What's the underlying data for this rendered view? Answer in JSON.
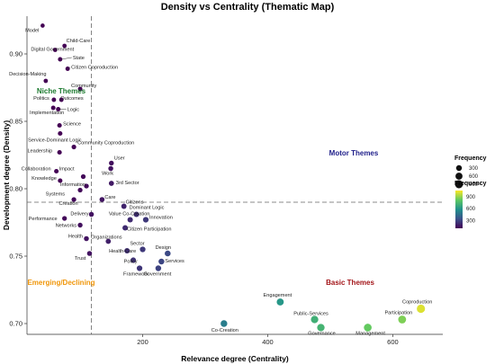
{
  "chart_data": {
    "type": "scatter",
    "title": "Density vs Centrality (Thematic Map)",
    "xlabel": "Relevance degree (Centrality)",
    "ylabel": "Development degree (Density)",
    "x_ticks": [
      200,
      400,
      600
    ],
    "y_ticks": [
      0.7,
      0.75,
      0.8,
      0.85,
      0.9
    ],
    "xlim": [
      15,
      680
    ],
    "ylim": [
      0.692,
      0.928
    ],
    "ref_x": 118,
    "ref_y": 0.79,
    "grid": false,
    "quadrant_labels": [
      {
        "text": "Niche Themes",
        "color": "#1b7a2e"
      },
      {
        "text": "Motor Themes",
        "color": "#1f1f8a"
      },
      {
        "text": "Emerging/Declining",
        "color": "#f0960a"
      },
      {
        "text": "Basic Themes",
        "color": "#a3161a"
      }
    ],
    "legend_frequency": {
      "title": "Frequency",
      "values": [
        300,
        600,
        900
      ]
    },
    "legend_color": {
      "title": "Frequency",
      "ticks": [
        300,
        600,
        900
      ],
      "min": 100,
      "max": 1050
    },
    "points": [
      {
        "label": "Model",
        "x": 40,
        "y": 0.921,
        "freq": 60
      },
      {
        "label": "Child-Care",
        "x": 75,
        "y": 0.906,
        "freq": 70
      },
      {
        "label": "Digital Government",
        "x": 60,
        "y": 0.903,
        "freq": 70
      },
      {
        "label": "State",
        "x": 68,
        "y": 0.896,
        "freq": 80
      },
      {
        "label": "Citizen Coproduction",
        "x": 80,
        "y": 0.889,
        "freq": 80
      },
      {
        "label": "Decision-Making",
        "x": 45,
        "y": 0.88,
        "freq": 70
      },
      {
        "label": "Community",
        "x": 100,
        "y": 0.874,
        "freq": 90
      },
      {
        "label": "Politics",
        "x": 58,
        "y": 0.866,
        "freq": 80
      },
      {
        "label": "Outcomes",
        "x": 70,
        "y": 0.866,
        "freq": 80
      },
      {
        "label": "Implementation",
        "x": 57,
        "y": 0.86,
        "freq": 90
      },
      {
        "label": "Logic",
        "x": 65,
        "y": 0.859,
        "freq": 90
      },
      {
        "label": "Science",
        "x": 67,
        "y": 0.847,
        "freq": 100
      },
      {
        "label": "Service-Dominant Logic",
        "x": 68,
        "y": 0.841,
        "freq": 100
      },
      {
        "label": "Community Coproduction",
        "x": 90,
        "y": 0.831,
        "freq": 110
      },
      {
        "label": "Leadership",
        "x": 67,
        "y": 0.827,
        "freq": 100
      },
      {
        "label": "User",
        "x": 150,
        "y": 0.819,
        "freq": 140
      },
      {
        "label": "Collaboration",
        "x": 62,
        "y": 0.813,
        "freq": 100
      },
      {
        "label": "Impact",
        "x": 105,
        "y": 0.809,
        "freq": 120
      },
      {
        "label": "Work",
        "x": 149,
        "y": 0.815,
        "freq": 150
      },
      {
        "label": "Knowledge",
        "x": 68,
        "y": 0.806,
        "freq": 100
      },
      {
        "label": "3rd Sector",
        "x": 150,
        "y": 0.804,
        "freq": 170
      },
      {
        "label": "Information",
        "x": 110,
        "y": 0.802,
        "freq": 130
      },
      {
        "label": "Systems",
        "x": 100,
        "y": 0.799,
        "freq": 120
      },
      {
        "label": "Care",
        "x": 135,
        "y": 0.792,
        "freq": 160
      },
      {
        "label": "Creation",
        "x": 90,
        "y": 0.792,
        "freq": 120
      },
      {
        "label": "Citizens",
        "x": 170,
        "y": 0.787,
        "freq": 200
      },
      {
        "label": "Dominant Logic",
        "x": 190,
        "y": 0.781,
        "freq": 230
      },
      {
        "label": "Delivery",
        "x": 118,
        "y": 0.781,
        "freq": 150
      },
      {
        "label": "Value Co-Creation",
        "x": 180,
        "y": 0.777,
        "freq": 220
      },
      {
        "label": "Innovation",
        "x": 205,
        "y": 0.777,
        "freq": 260
      },
      {
        "label": "Performance",
        "x": 75,
        "y": 0.778,
        "freq": 120
      },
      {
        "label": "Citizen Participation",
        "x": 172,
        "y": 0.771,
        "freq": 220
      },
      {
        "label": "Networks",
        "x": 100,
        "y": 0.773,
        "freq": 140
      },
      {
        "label": "Health",
        "x": 110,
        "y": 0.763,
        "freq": 150
      },
      {
        "label": "Organizations",
        "x": 145,
        "y": 0.761,
        "freq": 190
      },
      {
        "label": "Sector",
        "x": 200,
        "y": 0.755,
        "freq": 260
      },
      {
        "label": "Health-Care",
        "x": 175,
        "y": 0.754,
        "freq": 230
      },
      {
        "label": "Design",
        "x": 240,
        "y": 0.752,
        "freq": 310
      },
      {
        "label": "Trust",
        "x": 115,
        "y": 0.752,
        "freq": 150
      },
      {
        "label": "Policy",
        "x": 185,
        "y": 0.747,
        "freq": 240
      },
      {
        "label": "Services",
        "x": 230,
        "y": 0.746,
        "freq": 300
      },
      {
        "label": "Framework",
        "x": 195,
        "y": 0.741,
        "freq": 250
      },
      {
        "label": "Government",
        "x": 225,
        "y": 0.741,
        "freq": 290
      },
      {
        "label": "Engagement",
        "x": 420,
        "y": 0.716,
        "freq": 600
      },
      {
        "label": "Coproduction",
        "x": 645,
        "y": 0.711,
        "freq": 1000
      },
      {
        "label": "Public-Services",
        "x": 475,
        "y": 0.703,
        "freq": 700
      },
      {
        "label": "Participation",
        "x": 615,
        "y": 0.703,
        "freq": 860
      },
      {
        "label": "Co-Creation",
        "x": 330,
        "y": 0.7,
        "freq": 500
      },
      {
        "label": "Governance",
        "x": 485,
        "y": 0.697,
        "freq": 720
      },
      {
        "label": "Management",
        "x": 560,
        "y": 0.697,
        "freq": 820
      }
    ]
  }
}
